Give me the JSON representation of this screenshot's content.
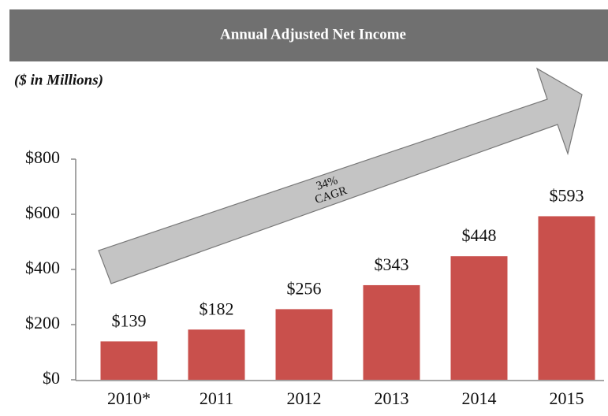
{
  "chart_data": {
    "type": "bar",
    "title": "Annual Adjusted Net Income",
    "subtitle": "($ in Millions)",
    "annotation": [
      "34%",
      "CAGR"
    ],
    "categories": [
      "2010*",
      "2011",
      "2012",
      "2013",
      "2014",
      "2015"
    ],
    "values": [
      139,
      182,
      256,
      343,
      448,
      593
    ],
    "value_labels": [
      "$139",
      "$182",
      "$256",
      "$343",
      "$448",
      "$593"
    ],
    "color": "#c9504c",
    "ylim": [
      0,
      800
    ],
    "yticks": [
      {
        "value": 0,
        "label": "$0"
      },
      {
        "value": 200,
        "label": "$200"
      },
      {
        "value": 400,
        "label": "$400"
      },
      {
        "value": 600,
        "label": "$600"
      },
      {
        "value": 800,
        "label": "$800"
      }
    ],
    "grid": false
  }
}
